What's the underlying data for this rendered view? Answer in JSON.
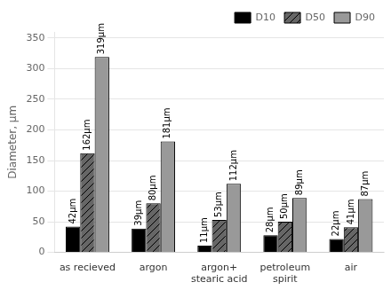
{
  "chart_data": {
    "type": "bar",
    "categories": [
      "as recieved",
      "argon",
      "argon+\nstearic acid",
      "petroleum\nspirit",
      "air"
    ],
    "series": [
      {
        "name": "D10",
        "color": "#000000",
        "values": [
          42,
          39,
          11,
          28,
          22
        ],
        "value_labels": [
          "42μm",
          "39μm",
          "11μm",
          "28μm",
          "22μm"
        ]
      },
      {
        "name": "D50",
        "color": "#666666",
        "values": [
          162,
          80,
          53,
          50,
          41
        ],
        "value_labels": [
          "162μm",
          "80μm",
          "53μm",
          "50μm",
          "41μm"
        ]
      },
      {
        "name": "D90",
        "color": "#999999",
        "values": [
          319,
          181,
          112,
          89,
          87
        ],
        "value_labels": [
          "319μm",
          "181μm",
          "112μm",
          "89μm",
          "87μm"
        ]
      }
    ],
    "ylabel": "Diameter, μm",
    "ylim": [
      0,
      360
    ],
    "yticks": [
      0,
      50,
      100,
      150,
      200,
      250,
      300,
      350
    ],
    "grid": true,
    "legend": "upper right",
    "data_labels": true
  }
}
